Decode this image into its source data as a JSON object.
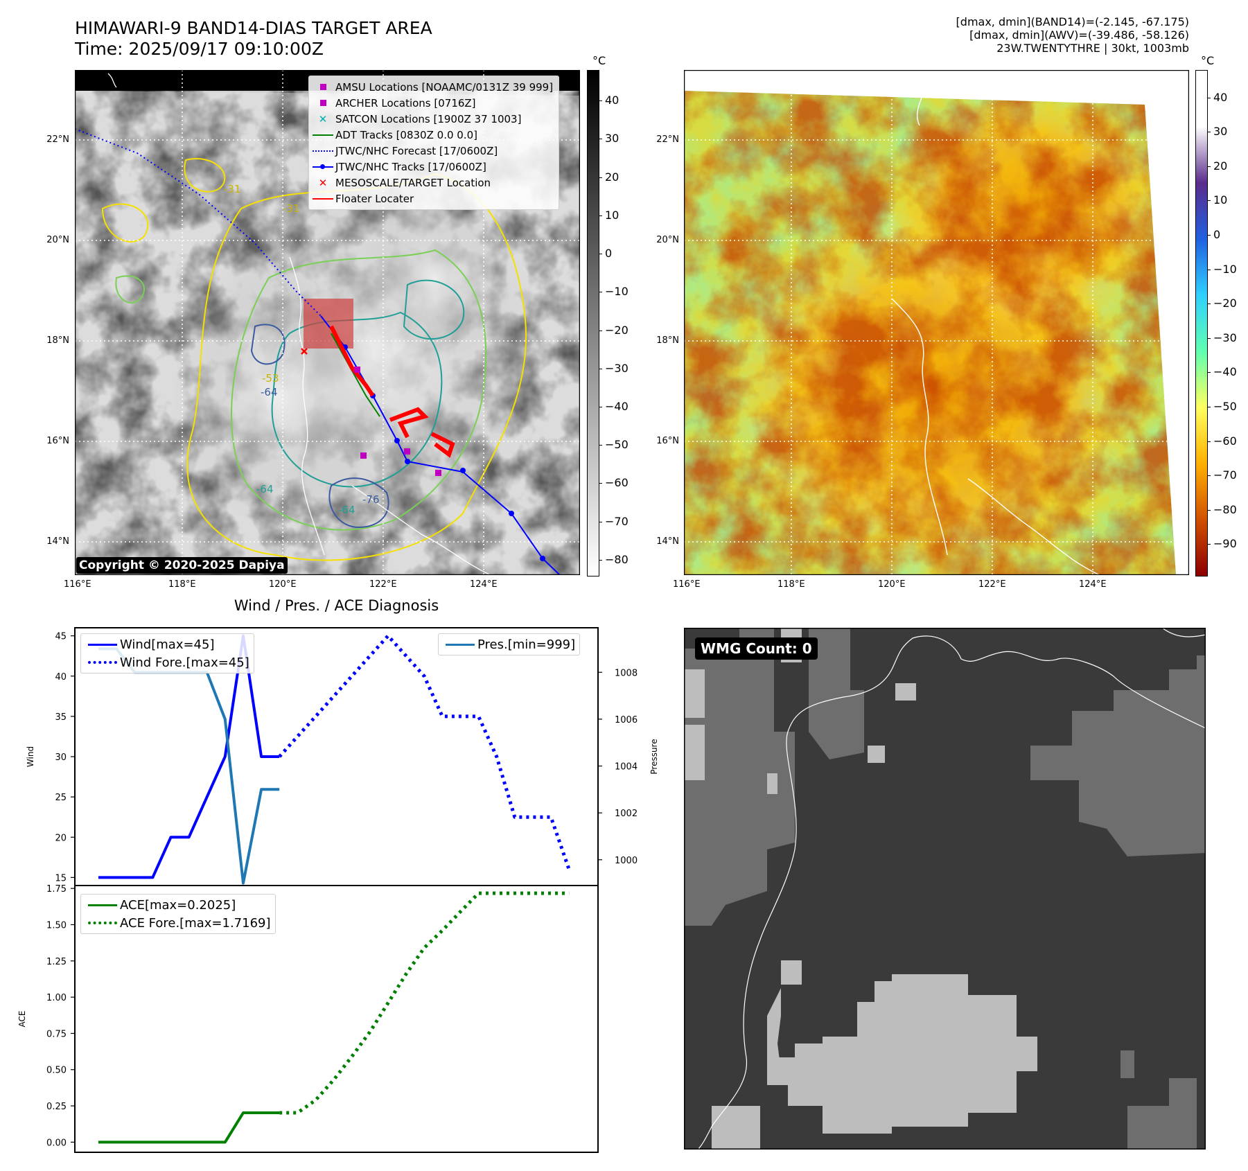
{
  "header": {
    "title_line1": "HIMAWARI-9 BAND14-DIAS TARGET AREA",
    "title_line2": "Time: 2025/09/17 09:10:00Z",
    "info_line1": "[dmax, dmin](BAND14)=(-2.145, -67.175)",
    "info_line2": "[dmax, dmin](AWV)=(-39.486, -58.126)",
    "info_line3": "23W.TWENTYTHRE | 30kt, 1003mb"
  },
  "map_axes": {
    "lon_ticks": [
      "116°E",
      "118°E",
      "120°E",
      "122°E",
      "124°E"
    ],
    "lat_ticks": [
      "22°N",
      "20°N",
      "18°N",
      "16°N",
      "14°N"
    ]
  },
  "ir_panel": {
    "copyright": "Copyright © 2020-2025 Dapiya",
    "contour_labels": [
      "-31",
      "-31",
      "-64",
      "-64",
      "-53",
      "-76",
      "-64"
    ],
    "legend": [
      {
        "label": "AMSU Locations [NOAAMC/0131Z 39 999]",
        "symbol": "square",
        "color": "#c000c0"
      },
      {
        "label": "ARCHER Locations [0716Z]",
        "symbol": "square",
        "color": "#c000c0"
      },
      {
        "label": "SATCON Locations [1900Z 37 1003]",
        "symbol": "x",
        "color": "#00b0b0"
      },
      {
        "label": "ADT Tracks [0830Z 0.0 0.0]",
        "symbol": "line",
        "color": "#008000"
      },
      {
        "label": "JTWC/NHC Forecast [17/0600Z]",
        "symbol": "dotted",
        "color": "#0000ff"
      },
      {
        "label": "JTWC/NHC Tracks [17/0600Z]",
        "symbol": "dotline",
        "color": "#0000ff"
      },
      {
        "label": "MESOSCALE/TARGET Location",
        "symbol": "x",
        "color": "#ff0000"
      },
      {
        "label": "Floater Locater",
        "symbol": "line",
        "color": "#ff0000"
      }
    ],
    "colorbar": {
      "unit": "°C",
      "ticks": [
        "40",
        "30",
        "20",
        "10",
        "0",
        "−10",
        "−20",
        "−30",
        "−40",
        "−50",
        "−60",
        "−70",
        "−80"
      ],
      "range": [
        48,
        -84
      ],
      "stops": [
        "#000000",
        "#ffffff"
      ]
    }
  },
  "awv_panel": {
    "colorbar": {
      "unit": "°C",
      "ticks": [
        "40",
        "30",
        "20",
        "10",
        "0",
        "−10",
        "−20",
        "−30",
        "−40",
        "−50",
        "−60",
        "−70",
        "−80",
        "−90"
      ],
      "range": [
        48,
        -99
      ],
      "stops": [
        "#ffffff",
        "#ffffff",
        "#5b2c8c",
        "#2060e0",
        "#30d0ff",
        "#60ffb0",
        "#ffff60",
        "#ffb000",
        "#d05000",
        "#8b0000"
      ]
    }
  },
  "diagnosis": {
    "title": "Wind / Pres. / ACE Diagnosis",
    "wind_ylabel": "Wind",
    "pres_ylabel": "Pressure",
    "ace_ylabel": "ACE",
    "legend_wind": "Wind[max=45]",
    "legend_wind_fore": "Wind Fore.[max=45]",
    "legend_pres": "Pres.[min=999]",
    "legend_ace": "ACE[max=0.2025]",
    "legend_ace_fore": "ACE Fore.[max=1.7169]"
  },
  "chart_data": [
    {
      "type": "line",
      "title": "Wind / Pres. / ACE Diagnosis",
      "ylabel": "Wind",
      "ylim": [
        14,
        46
      ],
      "yticks": [
        "15",
        "20",
        "25",
        "30",
        "35",
        "40",
        "45"
      ],
      "y2label": "Pressure",
      "y2lim": [
        998.9,
        1009.9
      ],
      "y2ticks": [
        "1000",
        "1002",
        "1004",
        "1006",
        "1008"
      ],
      "x": [
        0,
        1,
        2,
        3,
        4,
        5,
        6,
        7,
        8,
        9,
        10,
        11,
        12,
        13,
        14,
        15,
        16,
        17,
        18,
        19,
        20,
        21,
        22,
        23,
        24,
        25,
        26,
        27
      ],
      "series": [
        {
          "name": "Wind[max=45]",
          "axis": "left",
          "style": "solid",
          "color": "#0000ff",
          "points": [
            [
              0,
              15
            ],
            [
              1,
              15
            ],
            [
              2,
              15
            ],
            [
              3,
              15
            ],
            [
              4,
              20
            ],
            [
              5,
              20
            ],
            [
              6,
              25
            ],
            [
              7,
              30
            ],
            [
              8,
              45
            ],
            [
              9,
              30
            ],
            [
              10,
              30
            ]
          ]
        },
        {
          "name": "Wind Fore.[max=45]",
          "axis": "left",
          "style": "dotted",
          "color": "#0000ff",
          "points": [
            [
              10,
              30
            ],
            [
              11,
              32.5
            ],
            [
              12,
              35
            ],
            [
              13,
              37.5
            ],
            [
              14,
              40
            ],
            [
              15,
              42.5
            ],
            [
              16,
              45
            ],
            [
              17,
              42.5
            ],
            [
              18,
              40
            ],
            [
              19,
              35
            ],
            [
              20,
              35
            ],
            [
              21,
              35
            ],
            [
              22,
              30
            ],
            [
              23,
              22.5
            ],
            [
              24,
              22.5
            ],
            [
              25,
              22.5
            ],
            [
              26,
              16
            ]
          ]
        },
        {
          "name": "Pres.[min=999]",
          "axis": "right",
          "style": "solid",
          "color": "#1f77b4",
          "points": [
            [
              0,
              1009
            ],
            [
              1,
              1009
            ],
            [
              2,
              1008
            ],
            [
              3,
              1008
            ],
            [
              4,
              1008
            ],
            [
              5,
              1008
            ],
            [
              6,
              1008
            ],
            [
              7,
              1006
            ],
            [
              8,
              999
            ],
            [
              9,
              1003
            ],
            [
              10,
              1003
            ]
          ]
        }
      ]
    },
    {
      "type": "line",
      "ylabel": "ACE",
      "ylim": [
        -0.07,
        1.77
      ],
      "yticks": [
        "0.00",
        "0.25",
        "0.50",
        "0.75",
        "1.00",
        "1.25",
        "1.50",
        "1.75"
      ],
      "series": [
        {
          "name": "ACE[max=0.2025]",
          "style": "solid",
          "color": "#008000",
          "points": [
            [
              0,
              0
            ],
            [
              1,
              0
            ],
            [
              2,
              0
            ],
            [
              3,
              0
            ],
            [
              4,
              0
            ],
            [
              5,
              0
            ],
            [
              6,
              0
            ],
            [
              7,
              0
            ],
            [
              8,
              0.2025
            ],
            [
              9,
              0.2025
            ],
            [
              10,
              0.2025
            ]
          ]
        },
        {
          "name": "ACE Fore.[max=1.7169]",
          "style": "dotted",
          "color": "#008000",
          "points": [
            [
              10,
              0.2025
            ],
            [
              11,
              0.2025
            ],
            [
              12,
              0.29
            ],
            [
              13,
              0.43
            ],
            [
              14,
              0.59
            ],
            [
              15,
              0.76
            ],
            [
              16,
              0.96
            ],
            [
              17,
              1.16
            ],
            [
              18,
              1.34
            ],
            [
              19,
              1.46
            ],
            [
              20,
              1.59
            ],
            [
              21,
              1.7169
            ],
            [
              22,
              1.7169
            ],
            [
              23,
              1.7169
            ],
            [
              24,
              1.7169
            ],
            [
              25,
              1.7169
            ],
            [
              26,
              1.7169
            ]
          ]
        }
      ]
    }
  ],
  "wmg_panel": {
    "label": "WMG Count: 0"
  }
}
